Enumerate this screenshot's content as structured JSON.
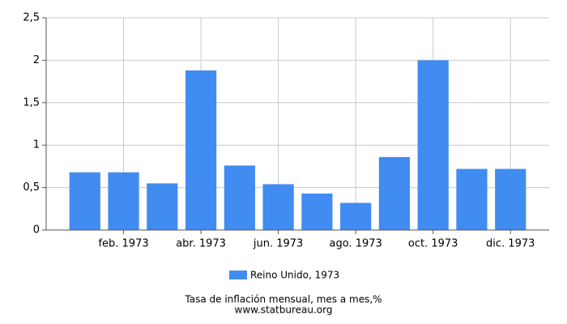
{
  "chart_data": {
    "type": "bar",
    "categories": [
      null,
      "feb. 1973",
      null,
      "abr. 1973",
      null,
      "jun. 1973",
      null,
      "ago. 1973",
      null,
      "oct. 1973",
      null,
      "dic. 1973"
    ],
    "series": [
      {
        "name": "Reino Unido, 1973",
        "color": "#418cf0",
        "values": [
          0.68,
          0.68,
          0.55,
          1.88,
          0.76,
          0.54,
          0.43,
          0.32,
          0.86,
          2.0,
          0.72,
          0.72
        ]
      }
    ],
    "ylim": [
      0,
      2.5
    ],
    "yticks": [
      0,
      {
        "value": 0.5,
        "label": "0,5"
      },
      1,
      {
        "value": 1.5,
        "label": "1,5"
      },
      2,
      {
        "value": 2.5,
        "label": "2,5"
      }
    ],
    "grid": true,
    "legend": "bottom",
    "caption": "Tasa de inflación mensual, mes a mes,%",
    "source": "www.statbureau.org"
  }
}
